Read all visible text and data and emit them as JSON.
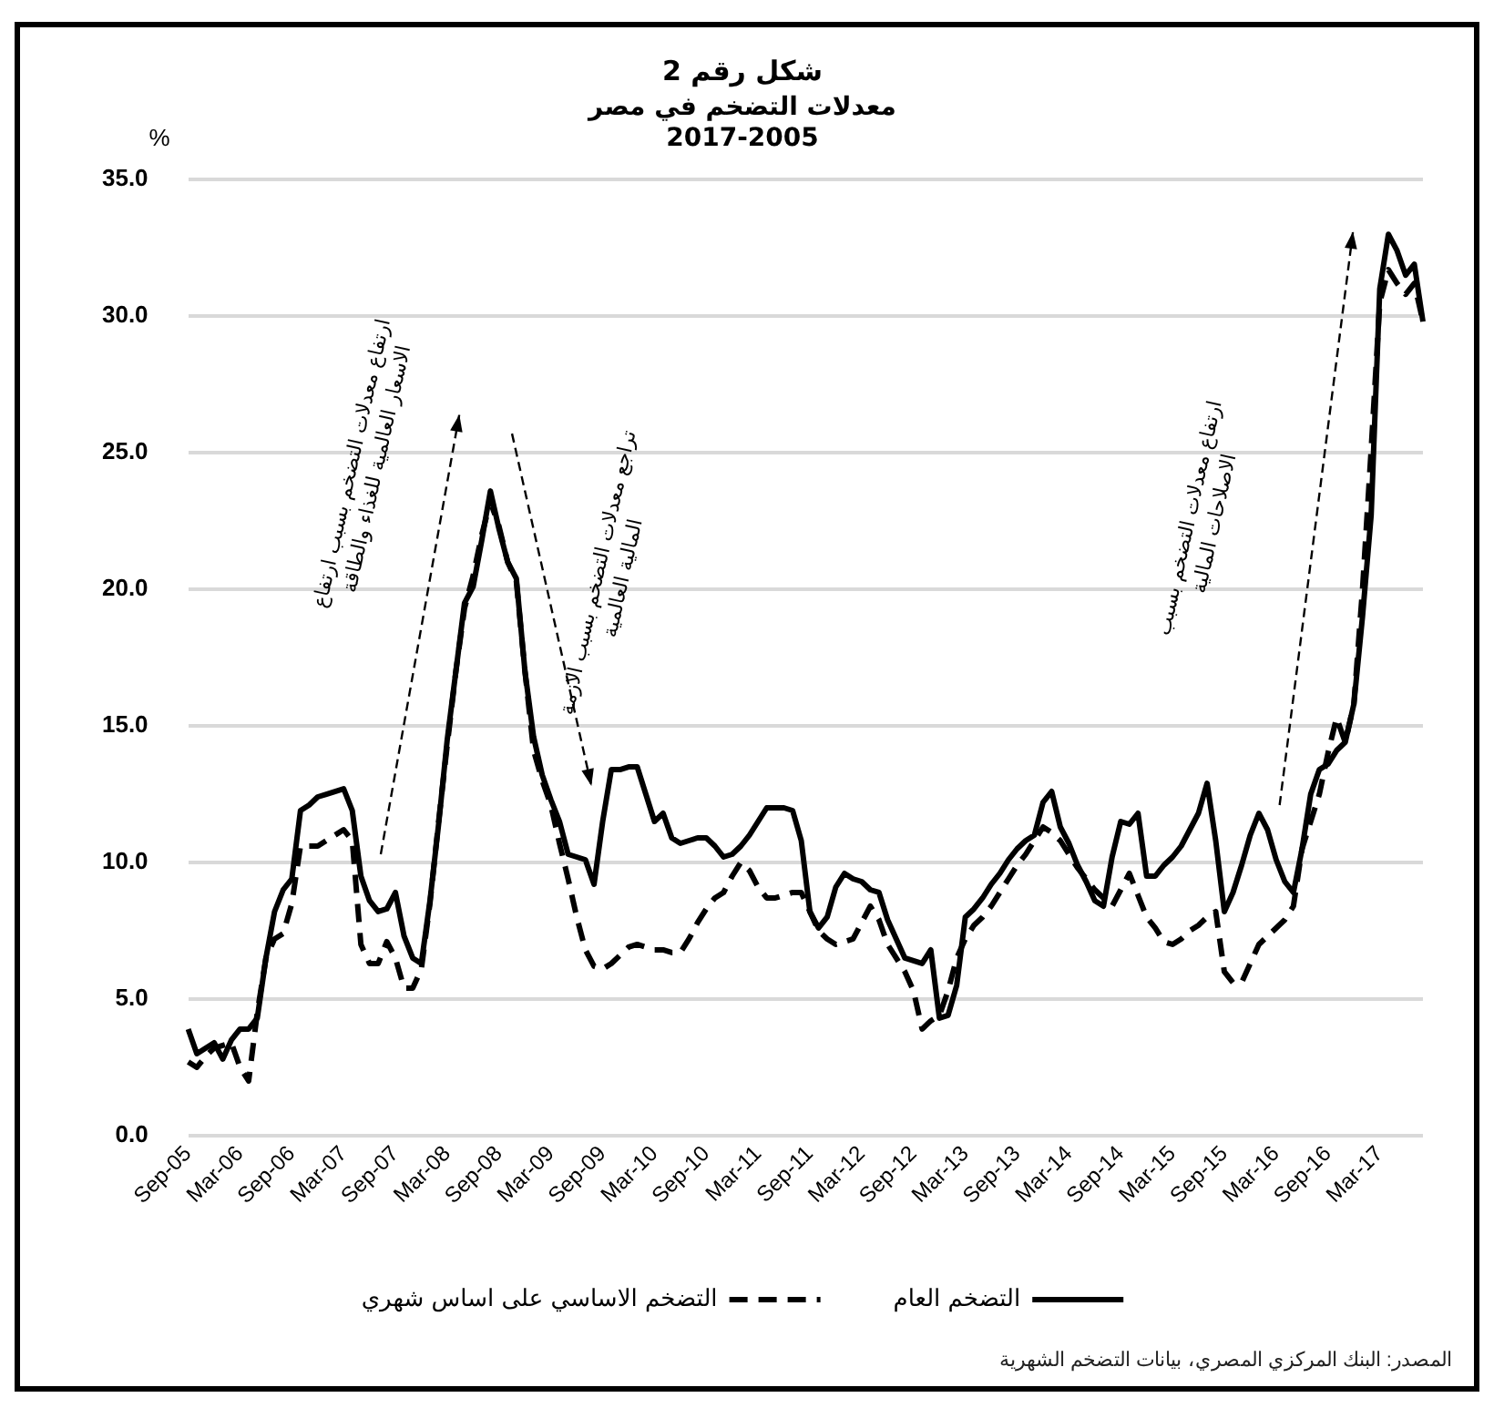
{
  "chart_data": {
    "type": "line",
    "title": "شكل رقم 2",
    "subtitle": "معدلات التضخم في مصر\n2017-2005",
    "ylabel": "%",
    "categories": [
      "Sep-05",
      null,
      null,
      null,
      null,
      null,
      "Mar-06",
      null,
      null,
      null,
      null,
      null,
      "Sep-06",
      null,
      null,
      null,
      null,
      null,
      "Mar-07",
      null,
      null,
      null,
      null,
      null,
      "Sep-07",
      null,
      null,
      null,
      null,
      null,
      "Mar-08",
      null,
      null,
      null,
      null,
      null,
      "Sep-08",
      null,
      null,
      null,
      null,
      null,
      "Mar-09",
      null,
      null,
      null,
      null,
      null,
      "Sep-09",
      null,
      null,
      null,
      null,
      null,
      "Mar-10",
      null,
      null,
      null,
      null,
      null,
      "Sep-10",
      null,
      null,
      null,
      null,
      null,
      "Mar-11",
      null,
      null,
      null,
      null,
      null,
      "Sep-11",
      null,
      null,
      null,
      null,
      null,
      "Mar-12",
      null,
      null,
      null,
      null,
      null,
      "Sep-12",
      null,
      null,
      null,
      null,
      null,
      "Mar-13",
      null,
      null,
      null,
      null,
      null,
      "Sep-13",
      null,
      null,
      null,
      null,
      null,
      "Mar-14",
      null,
      null,
      null,
      null,
      null,
      "Sep-14",
      null,
      null,
      null,
      null,
      null,
      "Mar-15",
      null,
      null,
      null,
      null,
      null,
      "Sep-15",
      null,
      null,
      null,
      null,
      null,
      "Mar-16",
      null,
      null,
      null,
      null,
      null,
      "Sep-16",
      null,
      null,
      null,
      null,
      null,
      "Mar-17",
      null,
      null,
      null,
      null,
      null
    ],
    "series": [
      {
        "name": "التضخم العام",
        "color": "#000000",
        "line_style": "solid",
        "values": [
          3.9,
          3.0,
          3.2,
          3.4,
          2.8,
          3.5,
          3.9,
          3.9,
          4.3,
          6.5,
          8.2,
          9.0,
          9.4,
          11.9,
          12.1,
          12.4,
          12.5,
          12.6,
          12.7,
          11.9,
          9.5,
          8.6,
          8.2,
          8.3,
          8.9,
          7.3,
          6.5,
          6.3,
          8.6,
          11.4,
          14.5,
          17.0,
          19.5,
          20.1,
          21.8,
          23.6,
          22.2,
          21.0,
          20.4,
          17.0,
          14.6,
          13.2,
          12.3,
          11.5,
          10.3,
          10.2,
          10.1,
          9.2,
          11.5,
          13.4,
          13.4,
          13.5,
          13.5,
          12.5,
          11.5,
          11.8,
          10.9,
          10.7,
          10.8,
          10.9,
          10.9,
          10.6,
          10.2,
          10.3,
          10.6,
          11.0,
          11.5,
          12.0,
          12.0,
          12.0,
          11.9,
          10.8,
          8.2,
          7.6,
          8.0,
          9.1,
          9.6,
          9.4,
          9.3,
          9.0,
          8.9,
          7.9,
          7.2,
          6.5,
          6.4,
          6.3,
          6.8,
          4.3,
          4.4,
          5.5,
          8.0,
          8.3,
          8.7,
          9.2,
          9.6,
          10.1,
          10.5,
          10.8,
          11.0,
          12.2,
          12.6,
          11.3,
          10.7,
          9.9,
          9.3,
          8.6,
          8.4,
          10.2,
          11.5,
          11.4,
          11.8,
          9.5,
          9.5,
          9.9,
          10.2,
          10.6,
          11.2,
          11.8,
          12.9,
          10.8,
          8.2,
          8.9,
          9.9,
          11.0,
          11.8,
          11.2,
          10.1,
          9.3,
          8.9,
          10.5,
          12.5,
          13.4,
          13.6,
          14.1,
          14.4,
          15.8,
          19.0,
          22.7,
          31.0,
          33.0,
          32.4,
          31.5,
          31.9,
          29.8
        ]
      },
      {
        "name": "التضخم الاساسي على اساس شهري",
        "color": "#000000",
        "line_style": "dashed",
        "values": [
          2.7,
          2.5,
          2.9,
          3.2,
          3.3,
          3.4,
          2.5,
          2.0,
          4.5,
          6.5,
          7.2,
          7.4,
          8.5,
          10.6,
          10.6,
          10.6,
          10.8,
          11.0,
          11.2,
          10.8,
          7.0,
          6.3,
          6.3,
          7.1,
          6.5,
          5.4,
          5.4,
          6.1,
          8.5,
          11.5,
          14.3,
          17.0,
          19.3,
          20.5,
          22.0,
          23.2,
          22.3,
          21.0,
          20.3,
          17.0,
          14.1,
          13.0,
          12.1,
          10.7,
          9.4,
          8.0,
          6.8,
          6.2,
          6.1,
          6.3,
          6.6,
          6.9,
          7.0,
          6.9,
          6.8,
          6.8,
          6.7,
          6.7,
          7.2,
          7.8,
          8.3,
          8.7,
          8.9,
          9.5,
          10.0,
          9.7,
          9.1,
          8.7,
          8.7,
          8.8,
          8.9,
          8.9,
          8.2,
          7.5,
          7.2,
          7.0,
          7.1,
          7.2,
          7.8,
          8.4,
          7.9,
          7.0,
          6.5,
          6.0,
          5.3,
          3.9,
          4.2,
          4.4,
          5.3,
          6.5,
          7.2,
          7.7,
          8.0,
          8.4,
          8.9,
          9.4,
          9.9,
          10.3,
          10.8,
          11.3,
          11.1,
          10.8,
          10.3,
          9.8,
          9.4,
          9.0,
          8.7,
          8.4,
          9.0,
          9.6,
          8.8,
          8.0,
          7.6,
          7.1,
          7.0,
          7.2,
          7.5,
          7.7,
          8.0,
          8.2,
          6.0,
          5.6,
          5.6,
          6.3,
          7.0,
          7.3,
          7.6,
          7.9,
          8.4,
          10.5,
          11.5,
          12.5,
          14.0,
          15.3,
          14.4,
          15.8,
          20.0,
          25.1,
          30.5,
          31.7,
          31.2,
          30.8,
          31.2,
          29.8
        ]
      }
    ],
    "ylim": [
      0,
      35
    ],
    "yticks": [
      {
        "value": 0,
        "label": "0.0"
      },
      {
        "value": 5,
        "label": "5.0"
      },
      {
        "value": 10,
        "label": "10.0"
      },
      {
        "value": 15,
        "label": "15.0"
      },
      {
        "value": 20,
        "label": "20.0"
      },
      {
        "value": 25,
        "label": "25.0"
      },
      {
        "value": 30,
        "label": "30.0"
      },
      {
        "value": 35,
        "label": "35.0"
      }
    ],
    "grid": "y",
    "legend": "bottom",
    "annotations": [
      "ارتفاع معدلات التضخم بسبب ارتفاع الاسعار العالمية للغذاء والطاقة",
      "تراجع معدلات التضخم بسبب الازمة المالية العالمية",
      "ارتفاع معدلات التضخم بسبب الاصلاحات المالية",
      "المصدر: البنك المركزي المصري، بيانات التضخم الشهرية"
    ]
  }
}
